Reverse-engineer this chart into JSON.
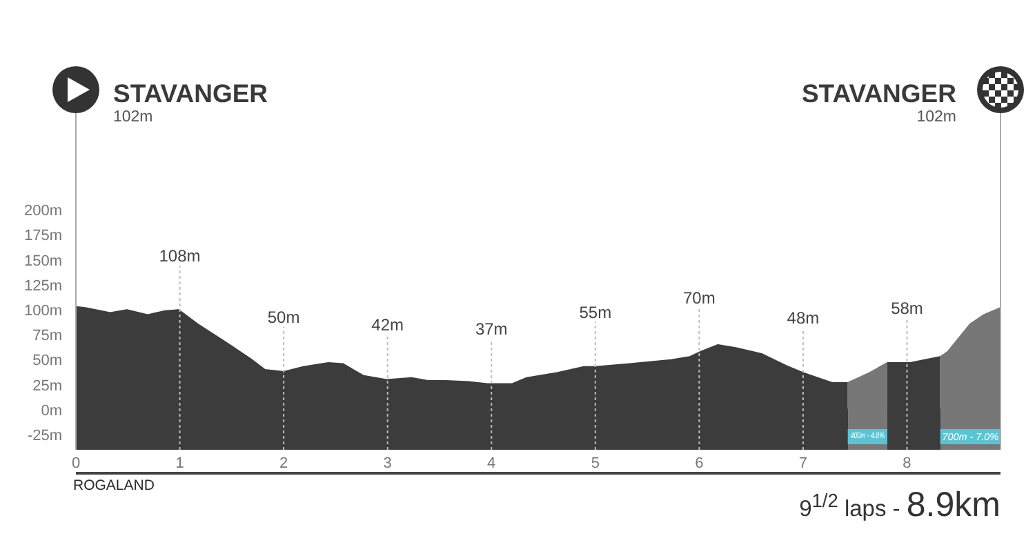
{
  "chart_data": {
    "type": "area",
    "xlim": [
      0,
      8.9
    ],
    "xticks": [
      0,
      1,
      2,
      3,
      4,
      5,
      6,
      7,
      8
    ],
    "ylim": [
      -40,
      330
    ],
    "yticks": [
      {
        "value": -25,
        "label": "-25m"
      },
      {
        "value": 0,
        "label": "0m"
      },
      {
        "value": 25,
        "label": "25m"
      },
      {
        "value": 50,
        "label": "50m"
      },
      {
        "value": 75,
        "label": "75m"
      },
      {
        "value": 100,
        "label": "100m"
      },
      {
        "value": 125,
        "label": "125m"
      },
      {
        "value": 150,
        "label": "150m"
      },
      {
        "value": 175,
        "label": "175m"
      },
      {
        "value": 200,
        "label": "200m"
      }
    ],
    "series": [
      {
        "type": "area",
        "color": "#3c3c3c",
        "x": [
          0,
          0.09,
          0.33,
          0.49,
          0.69,
          0.86,
          0.99,
          1.17,
          1.48,
          1.68,
          1.82,
          2.0,
          2.19,
          2.43,
          2.57,
          2.77,
          2.99,
          3.23,
          3.39,
          3.56,
          3.78,
          3.96,
          4.2,
          4.34,
          4.63,
          4.89,
          5.0,
          5.33,
          5.73,
          5.91,
          6.01,
          6.18,
          6.35,
          6.6,
          6.84,
          7.0,
          7.28,
          7.43
        ],
        "values": [
          103,
          102,
          97,
          100,
          95,
          99,
          100,
          86,
          65,
          51,
          40,
          38,
          43,
          47,
          46,
          34,
          30,
          32,
          29,
          29,
          28,
          26,
          26,
          32,
          37,
          43,
          43,
          46,
          50,
          53,
          58,
          65,
          62,
          56,
          44,
          37,
          27,
          27
        ]
      },
      {
        "type": "area",
        "color": "#777777",
        "x": [
          7.43,
          7.64,
          7.81
        ],
        "values": [
          27,
          37,
          47
        ]
      },
      {
        "type": "area",
        "color": "#3c3c3c",
        "x": [
          7.81,
          8.03,
          8.32
        ],
        "values": [
          47,
          47,
          53
        ]
      },
      {
        "type": "area",
        "color": "#777777",
        "x": [
          8.32,
          8.39,
          8.61,
          8.74,
          8.9
        ],
        "values": [
          53,
          58,
          86,
          95,
          102
        ]
      }
    ],
    "ref_lines": [
      {
        "axis": "x",
        "value": 1,
        "label": "108m",
        "line_style": "dashed",
        "color": "#bdbdbd"
      },
      {
        "axis": "x",
        "value": 2,
        "label": "50m",
        "line_style": "dashed",
        "color": "#bdbdbd"
      },
      {
        "axis": "x",
        "value": 3,
        "label": "42m",
        "line_style": "dashed",
        "color": "#bdbdbd"
      },
      {
        "axis": "x",
        "value": 4,
        "label": "37m",
        "line_style": "dashed",
        "color": "#bdbdbd"
      },
      {
        "axis": "x",
        "value": 5,
        "label": "55m",
        "line_style": "dashed",
        "color": "#bdbdbd"
      },
      {
        "axis": "x",
        "value": 6,
        "label": "70m",
        "line_style": "dashed",
        "color": "#bdbdbd"
      },
      {
        "axis": "x",
        "value": 7,
        "label": "48m",
        "line_style": "dashed",
        "color": "#bdbdbd"
      },
      {
        "axis": "x",
        "value": 8,
        "label": "58m",
        "line_style": "dashed",
        "color": "#bdbdbd"
      }
    ],
    "bands": [
      {
        "axis": "x",
        "from": 7.43,
        "to": 7.81,
        "label": "400m - 4.8%",
        "color": "#5bc4d4"
      },
      {
        "axis": "x",
        "from": 8.32,
        "to": 8.9,
        "label": "700m - 7.0%",
        "color": "#5bc4d4"
      }
    ],
    "annotations": [
      "STAVANGER",
      "102m",
      "STAVANGER",
      "102m",
      "ROGALAND",
      "9$^{1/2}$ laps - 8.9km"
    ]
  }
}
